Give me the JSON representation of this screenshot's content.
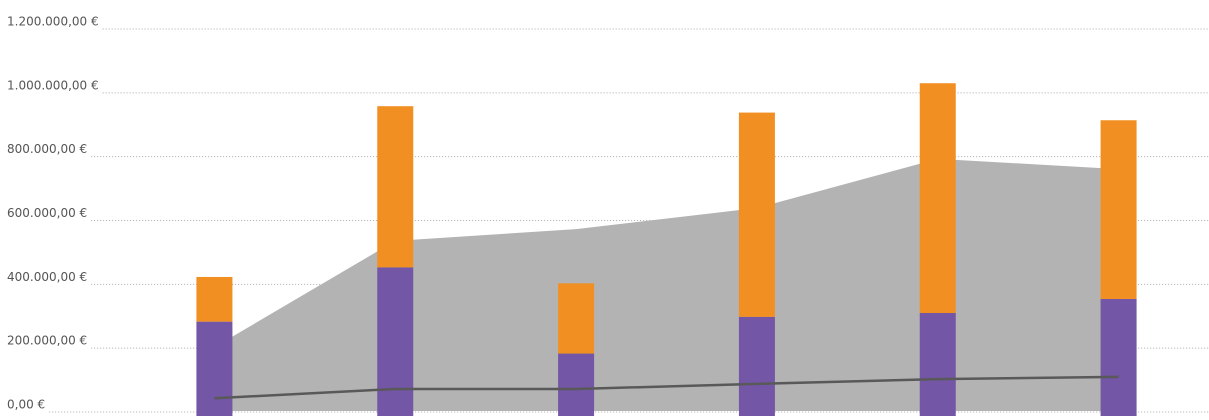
{
  "chart_data": {
    "type": "combo",
    "categories": [
      null,
      null,
      null,
      null,
      null,
      null
    ],
    "series": [
      {
        "type": "area",
        "color": "#b3b3b3",
        "values": [
          200000,
          533000,
          570000,
          636000,
          790000,
          758000
        ]
      },
      {
        "type": "bar",
        "stack": "s",
        "color": "#7356a5",
        "values": [
          280000,
          450000,
          180000,
          295000,
          307000,
          351000
        ]
      },
      {
        "type": "bar",
        "stack": "s",
        "color": "#f28f22",
        "values": [
          140000,
          505000,
          220000,
          640000,
          720000,
          560000
        ]
      },
      {
        "type": "line",
        "color": "#595959",
        "values": [
          40000,
          69000,
          69000,
          85000,
          100000,
          107000
        ]
      }
    ],
    "ylim": [
      0,
      1200000
    ],
    "yticks": [
      {
        "value": 0,
        "label": "0,00 €"
      },
      {
        "value": 200000,
        "label": "200.000,00 €"
      },
      {
        "value": 400000,
        "label": "400.000,00 €"
      },
      {
        "value": 600000,
        "label": "600.000,00 €"
      },
      {
        "value": 800000,
        "label": "800.000,00 €"
      },
      {
        "value": 1000000,
        "label": "1.000.000,00 €"
      },
      {
        "value": 1200000,
        "label": "1.200.000,00 €"
      }
    ],
    "grid": true
  }
}
